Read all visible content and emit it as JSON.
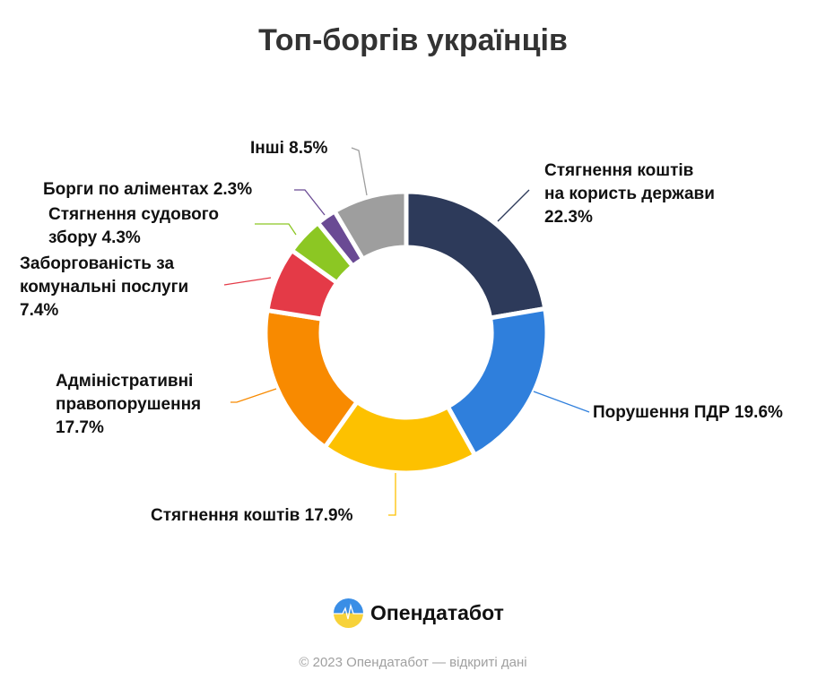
{
  "chart_data": {
    "type": "pie",
    "subtype": "donut",
    "title": "Топ-боргів українців",
    "slices": [
      {
        "label": "Стягнення коштів на користь держави",
        "value": 22.3,
        "color": "#2d3a5a"
      },
      {
        "label": "Порушення ПДР",
        "value": 19.6,
        "color": "#2f7fdc"
      },
      {
        "label": "Стягнення коштів",
        "value": 17.9,
        "color": "#fdc100"
      },
      {
        "label": "Адміністративні правопорушення",
        "value": 17.7,
        "color": "#f88a00"
      },
      {
        "label": "Заборгованість за комунальні послуги",
        "value": 7.4,
        "color": "#e43a47"
      },
      {
        "label": "Стягнення судового збору",
        "value": 4.3,
        "color": "#8cc723"
      },
      {
        "label": "Борги по аліментах",
        "value": 2.3,
        "color": "#6a4a94"
      },
      {
        "label": "Інші",
        "value": 8.5,
        "color": "#9e9e9e"
      }
    ],
    "label_texts": [
      [
        "Стягнення коштів",
        "на користь держави",
        "22.3%"
      ],
      [
        "Порушення ПДР 19.6%"
      ],
      [
        "Стягнення коштів 17.9%"
      ],
      [
        "Адміністративні",
        "правопорушення",
        "17.7%"
      ],
      [
        "Заборгованість за",
        "комунальні послуги",
        "7.4%"
      ],
      [
        "Стягнення судового",
        "збору 4.3%"
      ],
      [
        "Борги по аліментах 2.3%"
      ],
      [
        "Інші 8.5%"
      ]
    ]
  },
  "brand": {
    "name": "Опендатабот"
  },
  "footer": "© 2023 Опендатабот — відкриті дані"
}
